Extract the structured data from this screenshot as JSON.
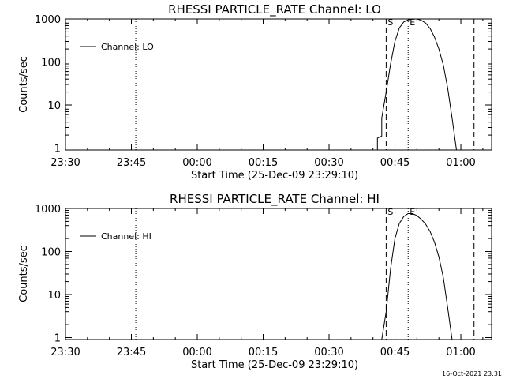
{
  "chart_data": [
    {
      "type": "line",
      "title": "RHESSI PARTICLE_RATE Channel: LO",
      "xlabel": "Start Time (25-Dec-09 23:29:10)",
      "ylabel": "Counts/sec",
      "y_scale": "log",
      "ylim": [
        0.9,
        1000
      ],
      "xlim": [
        "23:30",
        "01:07"
      ],
      "x_ticks": [
        "23:30",
        "23:45",
        "00:00",
        "00:15",
        "00:30",
        "00:45",
        "01:00"
      ],
      "y_ticks": [
        "1",
        "10",
        "100",
        "1000"
      ],
      "legend": {
        "position": "top-left",
        "entries": [
          "Channel: LO"
        ]
      },
      "grid": false,
      "series": [
        {
          "name": "Channel: LO",
          "color": "#000000",
          "points": [
            [
              "00:41",
              0.9
            ],
            [
              "00:41",
              1.7
            ],
            [
              "00:42",
              1.9
            ],
            [
              "00:42",
              5
            ],
            [
              "00:43",
              20
            ],
            [
              "00:44",
              90
            ],
            [
              "00:45",
              300
            ],
            [
              "00:46",
              620
            ],
            [
              "00:47",
              850
            ],
            [
              "00:48",
              950
            ],
            [
              "00:49",
              1000
            ],
            [
              "00:50",
              1000
            ],
            [
              "00:51",
              930
            ],
            [
              "00:52",
              800
            ],
            [
              "00:53",
              600
            ],
            [
              "00:54",
              380
            ],
            [
              "00:55",
              200
            ],
            [
              "00:56",
              85
            ],
            [
              "00:57",
              25
            ],
            [
              "00:58",
              5
            ],
            [
              "00:59",
              0.9
            ]
          ]
        }
      ],
      "dashed_vlines": [
        "00:43",
        "01:03"
      ],
      "dotted_vlines": [
        "23:46",
        "00:48",
        "01:07"
      ],
      "markers": [
        {
          "label": "S",
          "at": "00:43"
        },
        {
          "label": "E",
          "at": "00:48"
        }
      ]
    },
    {
      "type": "line",
      "title": "RHESSI PARTICLE_RATE Channel: HI",
      "xlabel": "Start Time (25-Dec-09 23:29:10)",
      "ylabel": "Counts/sec",
      "y_scale": "log",
      "ylim": [
        0.9,
        1000
      ],
      "xlim": [
        "23:30",
        "01:07"
      ],
      "x_ticks": [
        "23:30",
        "23:45",
        "00:00",
        "00:15",
        "00:30",
        "00:45",
        "01:00"
      ],
      "y_ticks": [
        "1",
        "10",
        "100",
        "1000"
      ],
      "legend": {
        "position": "top-left",
        "entries": [
          "Channel: HI"
        ]
      },
      "grid": false,
      "series": [
        {
          "name": "Channel: HI",
          "color": "#000000",
          "points": [
            [
              "00:42",
              0.9
            ],
            [
              "00:43",
              4
            ],
            [
              "00:44",
              40
            ],
            [
              "00:45",
              200
            ],
            [
              "00:46",
              450
            ],
            [
              "00:47",
              650
            ],
            [
              "00:48",
              760
            ],
            [
              "00:49",
              760
            ],
            [
              "00:50",
              680
            ],
            [
              "00:51",
              560
            ],
            [
              "00:52",
              430
            ],
            [
              "00:53",
              290
            ],
            [
              "00:54",
              165
            ],
            [
              "00:55",
              75
            ],
            [
              "00:56",
              25
            ],
            [
              "00:57",
              5
            ],
            [
              "00:58",
              0.9
            ]
          ]
        }
      ],
      "dashed_vlines": [
        "00:43",
        "01:03"
      ],
      "dotted_vlines": [
        "23:46",
        "00:48",
        "01:07"
      ],
      "markers": [
        {
          "label": "S",
          "at": "00:43"
        },
        {
          "label": "E",
          "at": "00:48"
        }
      ]
    }
  ],
  "footer": {
    "timestamp": "16-Oct-2021 23:31"
  }
}
